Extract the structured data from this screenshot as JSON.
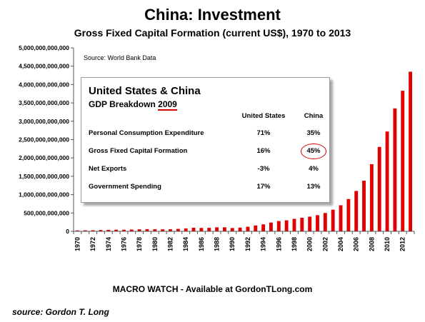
{
  "header": {
    "title": "China: Investment",
    "subtitle": "Gross Fixed Capital Formation (current US$), 1970 to 2013",
    "source_note": "Source: World Bank Data"
  },
  "chart_data": {
    "type": "bar",
    "title": "China: Investment",
    "subtitle": "Gross Fixed Capital Formation (current US$), 1970 to 2013",
    "xlabel": "",
    "ylabel": "",
    "ylim": [
      0,
      5000000000000
    ],
    "bar_color": "#e00000",
    "grid": false,
    "y_ticks": [
      0,
      500000000000,
      1000000000000,
      1500000000000,
      2000000000000,
      2500000000000,
      3000000000000,
      3500000000000,
      4000000000000,
      4500000000000,
      5000000000000
    ],
    "y_tick_labels": [
      "0",
      "500,000,000,000",
      "1,000,000,000,000",
      "1,500,000,000,000",
      "2,000,000,000,000",
      "2,500,000,000,000",
      "3,000,000,000,000",
      "3,500,000,000,000",
      "4,000,000,000,000",
      "4,500,000,000,000",
      "5,000,000,000,000"
    ],
    "x_tick_labels": [
      "1970",
      "1972",
      "1974",
      "1976",
      "1978",
      "1980",
      "1982",
      "1984",
      "1986",
      "1988",
      "1990",
      "1992",
      "1994",
      "1996",
      "1998",
      "2000",
      "2002",
      "2004",
      "2006",
      "2008",
      "2010",
      "2012"
    ],
    "categories": [
      "1970",
      "1971",
      "1972",
      "1973",
      "1974",
      "1975",
      "1976",
      "1977",
      "1978",
      "1979",
      "1980",
      "1981",
      "1982",
      "1983",
      "1984",
      "1985",
      "1986",
      "1987",
      "1988",
      "1989",
      "1990",
      "1991",
      "1992",
      "1993",
      "1994",
      "1995",
      "1996",
      "1997",
      "1998",
      "1999",
      "2000",
      "2001",
      "2002",
      "2003",
      "2004",
      "2005",
      "2006",
      "2007",
      "2008",
      "2009",
      "2010",
      "2011",
      "2012",
      "2013"
    ],
    "values": [
      25000000000,
      27000000000,
      30000000000,
      36000000000,
      40000000000,
      45000000000,
      44000000000,
      48000000000,
      55000000000,
      60000000000,
      57000000000,
      55000000000,
      58000000000,
      66000000000,
      80000000000,
      98000000000,
      92000000000,
      95000000000,
      110000000000,
      110000000000,
      90000000000,
      100000000000,
      125000000000,
      160000000000,
      190000000000,
      240000000000,
      280000000000,
      300000000000,
      340000000000,
      370000000000,
      400000000000,
      440000000000,
      500000000000,
      590000000000,
      710000000000,
      880000000000,
      1100000000000,
      1380000000000,
      1830000000000,
      2300000000000,
      2720000000000,
      3350000000000,
      3830000000000,
      4350000000000
    ]
  },
  "inset_table": {
    "title": "United States & China",
    "subtitle_prefix": "GDP Breakdown ",
    "subtitle_year": "2009",
    "col_us": "United States",
    "col_china": "China",
    "rows": [
      {
        "label": "Personal Consumption Expenditure",
        "us": "71%",
        "china": "35%"
      },
      {
        "label": "Gross Fixed Capital Formation",
        "us": "16%",
        "china": "45%"
      },
      {
        "label": "Net Exports",
        "us": "-3%",
        "china": "4%"
      },
      {
        "label": "Government Spending",
        "us": "17%",
        "china": "13%"
      }
    ],
    "highlight_color": "#d40000"
  },
  "footer": {
    "macro_watch": "MACRO WATCH - Available at GordonTLong.com",
    "credit": "source: Gordon T. Long"
  }
}
